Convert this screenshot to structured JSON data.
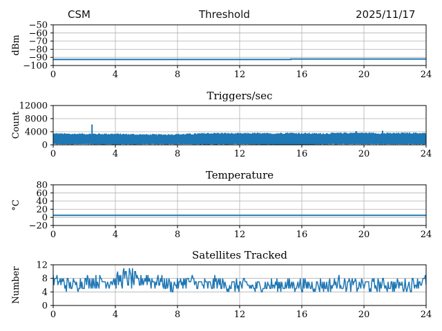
{
  "header": {
    "left": "CSM",
    "center": "Threshold",
    "right": "2025/11/17"
  },
  "colors": {
    "series": "#1f77b4",
    "grid": "#b0b0b0",
    "axis": "#000000"
  },
  "chart_data": [
    {
      "type": "line",
      "title": "",
      "xlabel": "",
      "ylabel": "dBm",
      "xlim": [
        0,
        24
      ],
      "ylim": [
        -100,
        -50
      ],
      "xticks": [
        0,
        4,
        8,
        12,
        16,
        20,
        24
      ],
      "yticks": [
        -100,
        -90,
        -80,
        -70,
        -60,
        -50
      ],
      "ytick_labels": [
        "−100",
        "−90",
        "−80",
        "−70",
        "−60",
        "−50"
      ],
      "grid": true,
      "series": [
        {
          "x": [
            0,
            15.3,
            15.3,
            24
          ],
          "values": [
            -92.5,
            -92.5,
            -92.0,
            -92.0
          ]
        }
      ]
    },
    {
      "type": "line",
      "title": "Triggers/sec",
      "xlabel": "",
      "ylabel": "Count",
      "xlim": [
        0,
        24
      ],
      "ylim": [
        0,
        12000
      ],
      "xticks": [
        0,
        4,
        8,
        12,
        16,
        20,
        24
      ],
      "yticks": [
        0,
        4000,
        8000,
        12000
      ],
      "ytick_labels": [
        "0",
        "4000",
        "8000",
        "12000"
      ],
      "grid": true,
      "band": {
        "x": [
          0,
          1,
          2,
          3,
          4,
          5,
          6,
          7,
          8,
          9,
          10,
          11,
          12,
          13,
          14,
          15,
          16,
          17,
          18,
          19,
          20,
          21,
          22,
          23,
          24
        ],
        "low": [
          300,
          300,
          300,
          250,
          250,
          250,
          300,
          300,
          300,
          300,
          250,
          250,
          300,
          250,
          200,
          100,
          100,
          250,
          300,
          300,
          300,
          300,
          300,
          300,
          300
        ],
        "high": [
          3300,
          3200,
          3200,
          3200,
          3200,
          3100,
          3000,
          3000,
          3100,
          3200,
          3400,
          3400,
          3300,
          3400,
          3300,
          3500,
          3400,
          3300,
          3400,
          3500,
          3500,
          3400,
          3400,
          3500,
          3400
        ]
      },
      "spikes": [
        {
          "x": 2.5,
          "value": 6200
        },
        {
          "x": 19.5,
          "value": 4200
        },
        {
          "x": 21.2,
          "value": 4300
        }
      ]
    },
    {
      "type": "line",
      "title": "Temperature",
      "xlabel": "",
      "ylabel": "°C",
      "xlim": [
        0,
        24
      ],
      "ylim": [
        -20,
        80
      ],
      "xticks": [
        0,
        4,
        8,
        12,
        16,
        20,
        24
      ],
      "yticks": [
        -20,
        0,
        20,
        40,
        60,
        80
      ],
      "ytick_labels": [
        "−20",
        "0",
        "20",
        "40",
        "60",
        "80"
      ],
      "grid": true,
      "series": [
        {
          "x": [
            0,
            24
          ],
          "values": [
            5,
            5
          ]
        }
      ]
    },
    {
      "type": "line",
      "title": "Satellites Tracked",
      "xlabel": "",
      "ylabel": "Number",
      "xlim": [
        0,
        24
      ],
      "ylim": [
        0,
        12
      ],
      "xticks": [
        0,
        4,
        8,
        12,
        16,
        20,
        24
      ],
      "yticks": [
        0,
        4,
        8,
        12
      ],
      "ytick_labels": [
        "0",
        "4",
        "8",
        "12"
      ],
      "grid": true,
      "series": [
        {
          "x": [
            0,
            0.5,
            1,
            1.5,
            2,
            2.5,
            3,
            3.5,
            4,
            4.5,
            5,
            5.5,
            6,
            6.5,
            7,
            7.5,
            8,
            8.5,
            9,
            9.5,
            10,
            10.5,
            11,
            11.5,
            12,
            12.5,
            13,
            13.5,
            14,
            14.5,
            15,
            15.5,
            16,
            16.5,
            17,
            17.5,
            18,
            18.5,
            19,
            19.5,
            20,
            20.5,
            21,
            21.5,
            22,
            22.5,
            23,
            23.5,
            24
          ],
          "mid": [
            7,
            7,
            6,
            6,
            7,
            7,
            7,
            7,
            7,
            8,
            8,
            7,
            8,
            7,
            7,
            6,
            6,
            7,
            7,
            6,
            6,
            7,
            6,
            6,
            6,
            6,
            5,
            6,
            6,
            6,
            6,
            6,
            6,
            6,
            6,
            6,
            6,
            7,
            6,
            6,
            6,
            6,
            6,
            6,
            6,
            6,
            6,
            7,
            7
          ],
          "amp": [
            2,
            2,
            2,
            2,
            2,
            2,
            2,
            2,
            2,
            3,
            3,
            2,
            3,
            2,
            2,
            2,
            2,
            2,
            2,
            2,
            2,
            2,
            2,
            2,
            2,
            2,
            2,
            2,
            2,
            2,
            2,
            2,
            2,
            2,
            2,
            2,
            2,
            2,
            2,
            2,
            2,
            2,
            2,
            2,
            2,
            2,
            2,
            2,
            2
          ],
          "min_value": 3,
          "max_value": 11
        }
      ]
    }
  ]
}
